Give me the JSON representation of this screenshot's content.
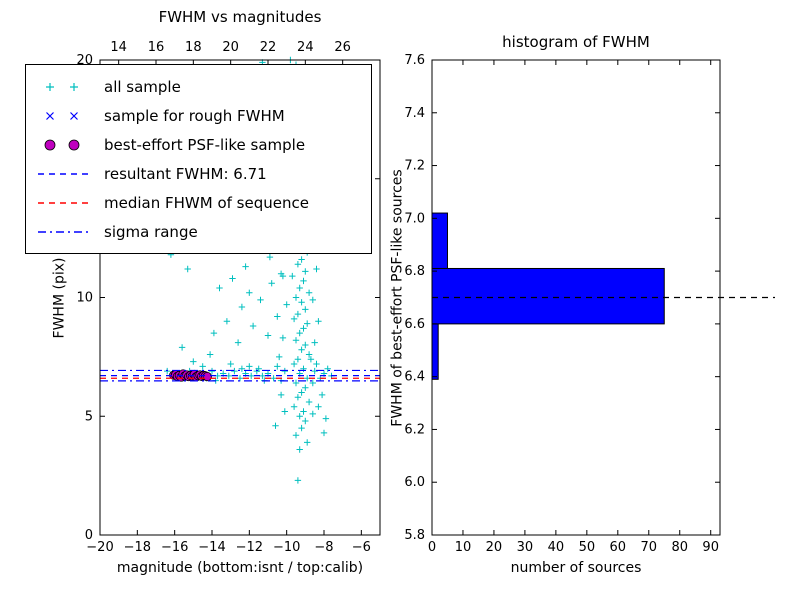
{
  "figure": {
    "background": "#ffffff"
  },
  "chart_data": [
    {
      "type": "scatter",
      "title": "FWHM vs magnitudes",
      "xlabel": "magnitude (bottom:isnt / top:calib)",
      "ylabel": "FWHM (pix)",
      "xlim": [
        -20,
        -5
      ],
      "ylim": [
        0,
        20
      ],
      "xticks": [
        -20,
        -18,
        -16,
        -14,
        -12,
        -10,
        -8,
        -6
      ],
      "xtick_labels": [
        "−20",
        "−18",
        "−16",
        "−14",
        "−12",
        "−10",
        "−8",
        "−6"
      ],
      "top_axis": {
        "tick_labels": [
          "14",
          "16",
          "18",
          "20",
          "22",
          "24",
          "26"
        ],
        "calib_offset": 33
      },
      "yticks": [
        0,
        5,
        10,
        15,
        20
      ],
      "ytick_labels": [
        "0",
        "5",
        "10",
        "15",
        "20"
      ],
      "grid": false,
      "legend_position": "upper left",
      "legend": [
        {
          "label": "all sample",
          "marker": "plus",
          "color": "#00bfbf"
        },
        {
          "label": "sample for rough FWHM",
          "marker": "x",
          "color": "#0000ff"
        },
        {
          "label": "best-effort PSF-like sample",
          "marker": "circle",
          "color": "#bf00bf"
        },
        {
          "label": "resultant FWHM: 6.71",
          "marker": "dashed-line",
          "color": "#0000ff"
        },
        {
          "label": "median FHWM of sequence",
          "marker": "dashed-line",
          "color": "#ff0000"
        },
        {
          "label": "sigma range",
          "marker": "dashdot-line",
          "color": "#0000ff"
        }
      ],
      "hlines": [
        {
          "name": "sigma-upper",
          "y": 6.93,
          "style": "dashdot",
          "color": "#0000ff"
        },
        {
          "name": "resultant-fwhm",
          "y": 6.71,
          "style": "dashed",
          "color": "#0000ff"
        },
        {
          "name": "median-fwhm",
          "y": 6.6,
          "style": "dashed",
          "color": "#ff0000"
        },
        {
          "name": "sigma-lower",
          "y": 6.49,
          "style": "dashdot",
          "color": "#0000ff"
        }
      ],
      "series": [
        {
          "name": "all sample",
          "marker": "plus",
          "color": "#00bfbf",
          "points": [
            [
              -9.5,
              19.8
            ],
            [
              -9.2,
              19.5
            ],
            [
              -9.0,
              19.0
            ],
            [
              -9.6,
              18.7
            ],
            [
              -9.3,
              18.3
            ],
            [
              -8.9,
              18.0
            ],
            [
              -9.1,
              17.6
            ],
            [
              -9.4,
              17.2
            ],
            [
              -9.7,
              16.9
            ],
            [
              -9.0,
              16.5
            ],
            [
              -9.3,
              16.2
            ],
            [
              -8.8,
              15.9
            ],
            [
              -9.5,
              15.6
            ],
            [
              -9.2,
              15.3
            ],
            [
              -9.0,
              15.0
            ],
            [
              -9.6,
              14.8
            ],
            [
              -9.3,
              14.5
            ],
            [
              -8.9,
              14.2
            ],
            [
              -9.1,
              13.9
            ],
            [
              -9.4,
              13.7
            ],
            [
              -9.2,
              13.4
            ],
            [
              -8.8,
              13.1
            ],
            [
              -9.6,
              12.9
            ],
            [
              -9.0,
              12.6
            ],
            [
              -9.3,
              12.4
            ],
            [
              -9.5,
              12.1
            ],
            [
              -8.9,
              11.9
            ],
            [
              -9.2,
              11.6
            ],
            [
              -9.4,
              11.4
            ],
            [
              -9.0,
              11.1
            ],
            [
              -9.7,
              10.9
            ],
            [
              -9.1,
              10.7
            ],
            [
              -9.3,
              10.4
            ],
            [
              -8.8,
              10.2
            ],
            [
              -9.5,
              10.0
            ],
            [
              -9.2,
              9.8
            ],
            [
              -9.0,
              9.5
            ],
            [
              -9.4,
              9.3
            ],
            [
              -9.6,
              9.1
            ],
            [
              -8.9,
              8.9
            ],
            [
              -9.1,
              8.7
            ],
            [
              -9.3,
              8.5
            ],
            [
              -9.5,
              8.2
            ],
            [
              -9.0,
              8.0
            ],
            [
              -9.2,
              7.8
            ],
            [
              -8.8,
              7.6
            ],
            [
              -9.4,
              7.4
            ],
            [
              -9.6,
              7.2
            ],
            [
              -9.1,
              7.0
            ],
            [
              -9.3,
              6.8
            ],
            [
              -8.9,
              6.6
            ],
            [
              -9.5,
              6.4
            ],
            [
              -9.0,
              6.2
            ],
            [
              -9.2,
              6.0
            ],
            [
              -9.4,
              5.8
            ],
            [
              -8.8,
              5.6
            ],
            [
              -9.6,
              5.4
            ],
            [
              -9.1,
              5.2
            ],
            [
              -9.3,
              5.0
            ],
            [
              -9.0,
              4.8
            ],
            [
              -9.2,
              4.5
            ],
            [
              -9.5,
              4.2
            ],
            [
              -8.9,
              3.9
            ],
            [
              -9.3,
              3.6
            ],
            [
              -9.4,
              2.3
            ],
            [
              -10.1,
              12.5
            ],
            [
              -10.3,
              11.0
            ],
            [
              -10.0,
              9.7
            ],
            [
              -10.2,
              8.3
            ],
            [
              -10.4,
              7.5
            ],
            [
              -10.1,
              6.9
            ],
            [
              -10.3,
              6.5
            ],
            [
              -10.0,
              14.0
            ],
            [
              -10.5,
              7.1
            ],
            [
              -10.3,
              5.9
            ],
            [
              -10.1,
              5.2
            ],
            [
              -10.6,
              4.6
            ],
            [
              -16.4,
              6.9
            ],
            [
              -16.1,
              6.7
            ],
            [
              -15.8,
              6.8
            ],
            [
              -15.5,
              6.6
            ],
            [
              -15.2,
              6.9
            ],
            [
              -14.9,
              6.7
            ],
            [
              -14.6,
              6.8
            ],
            [
              -14.3,
              6.6
            ],
            [
              -14.0,
              6.9
            ],
            [
              -13.7,
              6.7
            ],
            [
              -13.4,
              6.8
            ],
            [
              -13.1,
              6.7
            ],
            [
              -12.8,
              6.9
            ],
            [
              -12.5,
              6.6
            ],
            [
              -12.2,
              6.8
            ],
            [
              -11.9,
              6.7
            ],
            [
              -11.6,
              6.9
            ],
            [
              -11.3,
              6.7
            ],
            [
              -11.0,
              6.8
            ],
            [
              -10.7,
              6.6
            ],
            [
              -12.0,
              7.1
            ],
            [
              -13.0,
              7.2
            ],
            [
              -11.5,
              7.0
            ],
            [
              -14.5,
              7.1
            ],
            [
              -15.0,
              7.3
            ],
            [
              -13.8,
              6.5
            ],
            [
              -12.4,
              7.0
            ],
            [
              -11.2,
              6.5
            ],
            [
              -15.9,
              12.1
            ],
            [
              -16.2,
              11.8
            ],
            [
              -15.3,
              11.2
            ],
            [
              -14.8,
              19.3
            ],
            [
              -14.2,
              18.0
            ],
            [
              -13.6,
              10.4
            ],
            [
              -13.2,
              9.0
            ],
            [
              -12.9,
              10.8
            ],
            [
              -12.4,
              9.6
            ],
            [
              -12.0,
              10.2
            ],
            [
              -11.8,
              8.8
            ],
            [
              -11.4,
              9.9
            ],
            [
              -11.0,
              8.4
            ],
            [
              -10.8,
              10.6
            ],
            [
              -12.6,
              8.1
            ],
            [
              -13.9,
              8.5
            ],
            [
              -15.6,
              7.9
            ],
            [
              -11.2,
              12.8
            ],
            [
              -10.9,
              11.7
            ],
            [
              -12.2,
              11.3
            ],
            [
              -13.3,
              12.6
            ],
            [
              -14.1,
              7.6
            ],
            [
              -10.6,
              13.5
            ],
            [
              -11.7,
              14.2
            ],
            [
              -12.7,
              15.1
            ],
            [
              -10.4,
              16.3
            ],
            [
              -11.1,
              17.5
            ],
            [
              -10.2,
              18.9
            ],
            [
              -10.6,
              19.6
            ],
            [
              -11.3,
              19.9
            ],
            [
              -12.1,
              19.2
            ],
            [
              -13.0,
              19.7
            ],
            [
              -10.8,
              15.4
            ],
            [
              -9.8,
              20.0
            ],
            [
              -10.4,
              18.2
            ],
            [
              -10.2,
              10.9
            ],
            [
              -10.5,
              9.2
            ],
            [
              -8.5,
              6.9
            ],
            [
              -8.2,
              6.6
            ],
            [
              -8.0,
              6.8
            ],
            [
              -7.8,
              7.0
            ],
            [
              -8.4,
              7.2
            ],
            [
              -8.6,
              6.4
            ],
            [
              -8.1,
              5.9
            ],
            [
              -8.3,
              5.4
            ],
            [
              -7.9,
              4.9
            ],
            [
              -8.0,
              4.3
            ],
            [
              -8.6,
              5.1
            ],
            [
              -7.6,
              6.7
            ],
            [
              -8.7,
              7.4
            ],
            [
              -8.5,
              8.1
            ],
            [
              -8.3,
              9.0
            ],
            [
              -8.6,
              9.9
            ],
            [
              -8.4,
              11.2
            ],
            [
              -8.7,
              12.4
            ],
            [
              -8.2,
              13.8
            ],
            [
              -8.5,
              15.2
            ],
            [
              -8.3,
              16.8
            ],
            [
              -8.6,
              18.4
            ],
            [
              -8.1,
              19.6
            ]
          ]
        },
        {
          "name": "sample for rough FWHM",
          "marker": "x",
          "color": "#0000ff",
          "points": [
            [
              -16.0,
              6.69
            ],
            [
              -15.85,
              6.73
            ],
            [
              -15.7,
              6.67
            ],
            [
              -15.55,
              6.71
            ],
            [
              -15.4,
              6.74
            ],
            [
              -15.25,
              6.68
            ],
            [
              -15.1,
              6.72
            ],
            [
              -14.95,
              6.66
            ],
            [
              -14.8,
              6.7
            ],
            [
              -14.65,
              6.73
            ],
            [
              -14.5,
              6.68
            ],
            [
              -14.35,
              6.71
            ]
          ]
        },
        {
          "name": "best-effort PSF-like sample",
          "marker": "circle",
          "color": "#bf00bf",
          "edge": "#000000",
          "points": [
            [
              -16.05,
              6.73
            ],
            [
              -15.95,
              6.75
            ],
            [
              -15.85,
              6.68
            ],
            [
              -15.75,
              6.72
            ],
            [
              -15.65,
              6.65
            ],
            [
              -15.55,
              6.78
            ],
            [
              -15.45,
              6.7
            ],
            [
              -15.35,
              6.74
            ],
            [
              -15.25,
              6.67
            ],
            [
              -15.15,
              6.72
            ],
            [
              -15.05,
              6.69
            ],
            [
              -14.95,
              6.76
            ],
            [
              -14.85,
              6.66
            ],
            [
              -14.75,
              6.71
            ],
            [
              -14.65,
              6.74
            ],
            [
              -14.55,
              6.68
            ],
            [
              -14.45,
              6.72
            ],
            [
              -14.35,
              6.7
            ],
            [
              -14.25,
              6.67
            ]
          ]
        }
      ]
    },
    {
      "type": "bar-horizontal",
      "title": "histogram of FWHM",
      "xlabel": "number of sources",
      "ylabel": "FWHM of best-effort PSF-like sources",
      "xlim": [
        0,
        93
      ],
      "ylim": [
        5.8,
        7.6
      ],
      "xticks": [
        0,
        10,
        20,
        30,
        40,
        50,
        60,
        70,
        80,
        90
      ],
      "xtick_labels": [
        "0",
        "10",
        "20",
        "30",
        "40",
        "50",
        "60",
        "70",
        "80",
        "90"
      ],
      "yticks": [
        5.8,
        6.0,
        6.2,
        6.4,
        6.6,
        6.8,
        7.0,
        7.2,
        7.4,
        7.6
      ],
      "ytick_labels": [
        "5.8",
        "6.0",
        "6.2",
        "6.4",
        "6.6",
        "6.8",
        "7.0",
        "7.2",
        "7.4",
        "7.6"
      ],
      "bar_color": "#0000ff",
      "bar_edge_color": "#000000",
      "bins": [
        {
          "from": 6.39,
          "to": 6.6,
          "count": 2
        },
        {
          "from": 6.6,
          "to": 6.81,
          "count": 75
        },
        {
          "from": 6.81,
          "to": 7.02,
          "count": 5
        }
      ],
      "median_line": {
        "y": 6.7,
        "style": "dashed",
        "color": "#000000",
        "extends_beyond_frame": true
      }
    }
  ]
}
